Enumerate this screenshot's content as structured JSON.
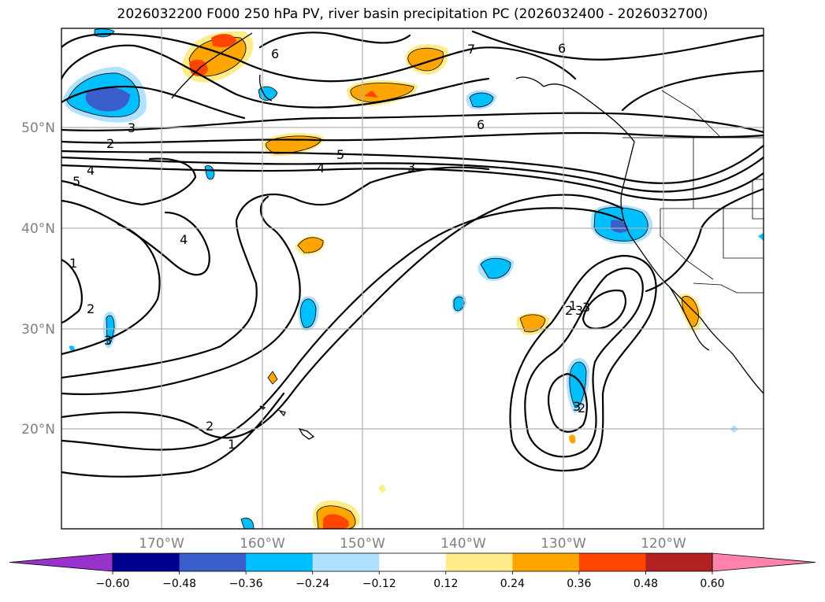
{
  "title": "2026032200 F000 250 hPa PV, river basin precipitation PC (2026032400 - 2026032700)",
  "latitude_labels": [
    "50°N",
    "40°N",
    "30°N",
    "20°N"
  ],
  "longitude_labels": [
    "170°W",
    "160°W",
    "150°W",
    "140°W",
    "130°W",
    "120°W"
  ],
  "colorbar": {
    "ticks": [
      "−0.60",
      "−0.48",
      "−0.36",
      "−0.24",
      "−0.12",
      "0.12",
      "0.24",
      "0.36",
      "0.48",
      "0.60"
    ],
    "bins": [
      {
        "range": "< -0.60",
        "color": "#9932cc"
      },
      {
        "range": "-0.60 to -0.48",
        "color": "#000090"
      },
      {
        "range": "-0.48 to -0.36",
        "color": "#3a5fcd"
      },
      {
        "range": "-0.36 to -0.24",
        "color": "#00bfff"
      },
      {
        "range": "-0.24 to -0.12",
        "color": "#b0e2ff"
      },
      {
        "range": "-0.12 to 0.12",
        "color": "#ffffff"
      },
      {
        "range": "0.12 to 0.24",
        "color": "#ffec8b"
      },
      {
        "range": "0.24 to 0.36",
        "color": "#ffa500"
      },
      {
        "range": "0.36 to 0.48",
        "color": "#ff4500"
      },
      {
        "range": "0.48 to 0.60",
        "color": "#b22222"
      },
      {
        "range": "> 0.60",
        "color": "#ff82ab"
      }
    ]
  },
  "contour_labels": [
    "1",
    "2",
    "3",
    "4",
    "5",
    "6",
    "4",
    "5",
    "3",
    "6",
    "7",
    "6",
    "3",
    "2",
    "4",
    "1",
    "2",
    "3",
    "2",
    "1",
    "2",
    "3",
    "3"
  ]
}
